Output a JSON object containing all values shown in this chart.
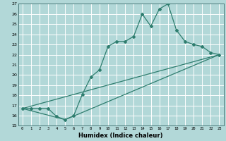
{
  "xlabel": "Humidex (Indice chaleur)",
  "bg_color": "#b2d8d8",
  "grid_color": "#ffffff",
  "line_color": "#2e7d6e",
  "xlim": [
    -0.5,
    23.5
  ],
  "ylim": [
    15,
    27
  ],
  "xticks": [
    0,
    1,
    2,
    3,
    4,
    5,
    6,
    7,
    8,
    9,
    10,
    11,
    12,
    13,
    14,
    15,
    16,
    17,
    18,
    19,
    20,
    21,
    22,
    23
  ],
  "yticks": [
    15,
    16,
    17,
    18,
    19,
    20,
    21,
    22,
    23,
    24,
    25,
    26,
    27
  ],
  "line1_x": [
    0,
    1,
    2,
    3,
    4,
    5,
    6,
    7,
    8,
    9,
    10,
    11,
    12,
    13,
    14,
    15,
    16,
    17,
    18,
    19,
    20,
    21,
    22,
    23
  ],
  "line1_y": [
    16.7,
    16.7,
    16.7,
    16.7,
    15.9,
    15.6,
    16.0,
    18.1,
    19.8,
    20.5,
    22.8,
    23.3,
    23.3,
    23.8,
    26.0,
    24.8,
    26.5,
    27.0,
    24.4,
    23.3,
    23.0,
    22.8,
    22.2,
    22.0
  ],
  "line2_x": [
    0,
    23
  ],
  "line2_y": [
    16.7,
    22.0
  ],
  "line3_x": [
    0,
    5,
    23
  ],
  "line3_y": [
    16.7,
    15.6,
    22.0
  ]
}
